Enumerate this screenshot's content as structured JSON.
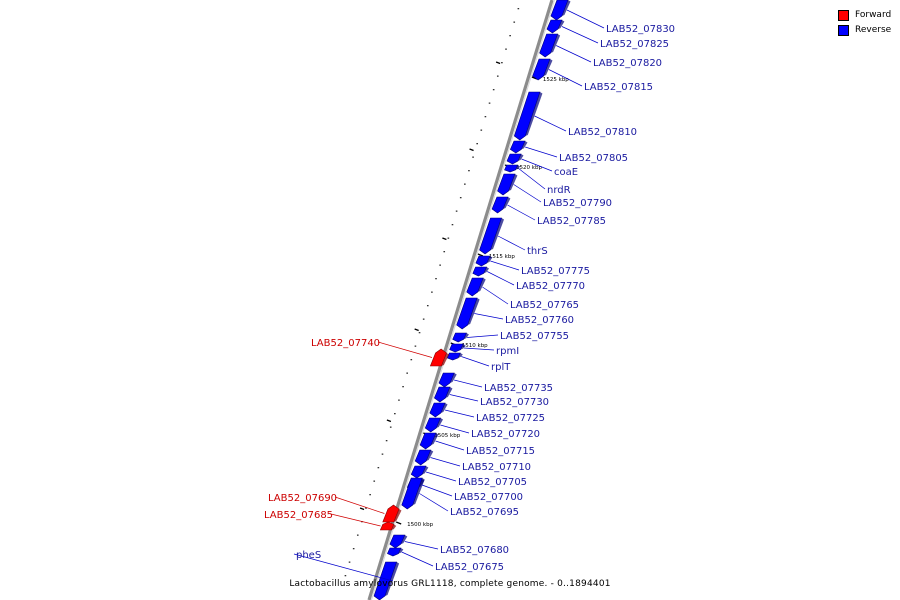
{
  "legend": [
    {
      "label": "Forward",
      "color": "#ff0000"
    },
    {
      "label": "Reverse",
      "color": "#0000ff"
    }
  ],
  "caption": "Lactobacillus amylovorus GRL1118, complete genome. - 0..1894401",
  "colors": {
    "forward": "#ff0000",
    "reverse": "#0000ff",
    "backbone": "#8c8c8c",
    "label_forward": "#cc0000",
    "label_reverse": "#1a1aa0"
  },
  "scale_ticks": [
    "1500 kbp",
    "1505 kbp",
    "1510 kbp",
    "1515 kbp",
    "1520 kbp",
    "1525 kbp"
  ],
  "genes": [
    {
      "label": "LAB52_07830",
      "strand": "reverse"
    },
    {
      "label": "LAB52_07825",
      "strand": "reverse"
    },
    {
      "label": "LAB52_07820",
      "strand": "reverse"
    },
    {
      "label": "LAB52_07815",
      "strand": "reverse"
    },
    {
      "label": "LAB52_07810",
      "strand": "reverse"
    },
    {
      "label": "LAB52_07805",
      "strand": "reverse"
    },
    {
      "label": "coaE",
      "strand": "reverse"
    },
    {
      "label": "nrdR",
      "strand": "reverse"
    },
    {
      "label": "LAB52_07790",
      "strand": "reverse"
    },
    {
      "label": "LAB52_07785",
      "strand": "reverse"
    },
    {
      "label": "thrS",
      "strand": "reverse"
    },
    {
      "label": "LAB52_07775",
      "strand": "reverse"
    },
    {
      "label": "LAB52_07770",
      "strand": "reverse"
    },
    {
      "label": "LAB52_07765",
      "strand": "reverse"
    },
    {
      "label": "LAB52_07760",
      "strand": "reverse"
    },
    {
      "label": "LAB52_07755",
      "strand": "reverse"
    },
    {
      "label": "rpmI",
      "strand": "reverse"
    },
    {
      "label": "rplT",
      "strand": "reverse"
    },
    {
      "label": "LAB52_07740",
      "strand": "forward"
    },
    {
      "label": "LAB52_07735",
      "strand": "reverse"
    },
    {
      "label": "LAB52_07730",
      "strand": "reverse"
    },
    {
      "label": "LAB52_07725",
      "strand": "reverse"
    },
    {
      "label": "LAB52_07720",
      "strand": "reverse"
    },
    {
      "label": "LAB52_07715",
      "strand": "reverse"
    },
    {
      "label": "LAB52_07710",
      "strand": "reverse"
    },
    {
      "label": "LAB52_07705",
      "strand": "reverse"
    },
    {
      "label": "LAB52_07700",
      "strand": "reverse"
    },
    {
      "label": "LAB52_07695",
      "strand": "reverse"
    },
    {
      "label": "LAB52_07690",
      "strand": "forward"
    },
    {
      "label": "LAB52_07685",
      "strand": "forward"
    },
    {
      "label": "LAB52_07680",
      "strand": "reverse"
    },
    {
      "label": "LAB52_07675",
      "strand": "reverse"
    },
    {
      "label": "pheS",
      "strand": "reverse"
    }
  ]
}
